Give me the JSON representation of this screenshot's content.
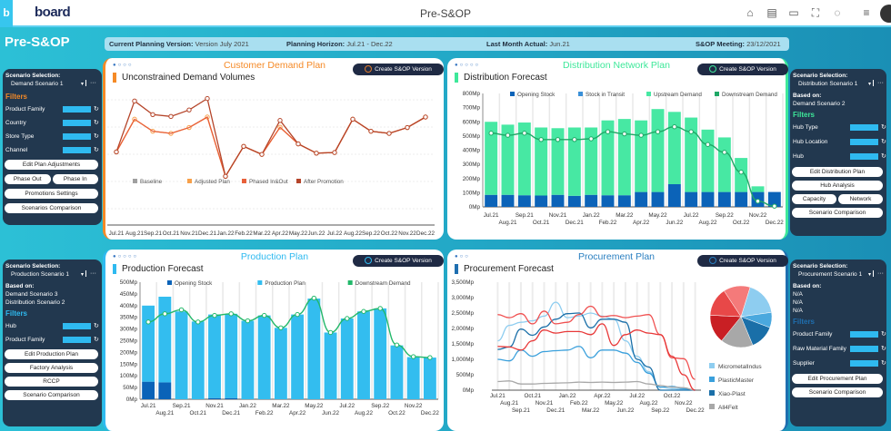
{
  "app": {
    "logo_letter": "b",
    "logo_text": "board",
    "title": "Pre-S&OP",
    "icons": [
      "home-icon",
      "hierarchy-icon",
      "list-icon",
      "network-icon",
      "chat-icon",
      "menu-icon"
    ]
  },
  "page_title": "Pre-S&OP",
  "info": {
    "cpv_label": "Current Planning Version:",
    "cpv_value": "Version July 2021",
    "ph_label": "Planning Horizon:",
    "ph_value": "Jul.21 - Dec.22",
    "lma_label": "Last Month Actual:",
    "lma_value": "Jun.21",
    "mtg_label": "S&OP Meeting:",
    "mtg_value": "23/12/2021"
  },
  "common": {
    "create_label": "Create S&OP Version",
    "scenario_label": "Scenario Selection:",
    "based_on_label": "Based on:",
    "filters_label": "Filters",
    "refresh": "↻",
    "caret": "▾",
    "more": "···"
  },
  "months": [
    "Jul.21",
    "Aug.21",
    "Sep.21",
    "Oct.21",
    "Nov.21",
    "Dec.21",
    "Jan.22",
    "Feb.22",
    "Mar.22",
    "Apr.22",
    "May.22",
    "Jun.22",
    "Jul.22",
    "Aug.22",
    "Sep.22",
    "Oct.22",
    "Nov.22",
    "Dec.22"
  ],
  "demand": {
    "card_title": "Customer Demand Plan",
    "accent": "#f58a27",
    "subtitle": "Unconstrained Demand Volumes",
    "scenario": "Demand Scenario 1",
    "filters": [
      "Product Family",
      "Country",
      "Store Type",
      "Channel"
    ],
    "buttons": [
      "Edit Plan Adjustments",
      "Phase Out",
      "Phase In",
      "Promotions Settings",
      "Scenarios Comparison"
    ]
  },
  "distribution": {
    "card_title": "Distribution Network Plan",
    "accent": "#3ee89a",
    "subtitle": "Distribution Forecast",
    "scenario": "Distribution Scenario 1",
    "based_on": [
      "Demand Scenario 2"
    ],
    "filters": [
      "Hub Type",
      "Hub Location",
      "Hub"
    ],
    "buttons": [
      "Edit Distribution Plan",
      "Hub Analysis",
      "Capacity",
      "Network",
      "Scenario Comparison"
    ]
  },
  "production": {
    "card_title": "Production Plan",
    "accent": "#2fbaf0",
    "subtitle": "Production Forecast",
    "scenario": "Production Scenario 1",
    "based_on": [
      "Demand Scenario 3",
      "Distribution Scenario 2"
    ],
    "filters": [
      "Hub",
      "Product Family"
    ],
    "buttons": [
      "Edit Production Plan",
      "Factory Analysis",
      "RCCP",
      "Scenario Comparison"
    ]
  },
  "procurement": {
    "card_title": "Procurement Plan",
    "accent": "#2a7fc0",
    "subtitle": "Procurement Forecast",
    "scenario": "Procurement Scenario 1",
    "based_on": [
      "N/A",
      "N/A",
      "N/A"
    ],
    "filters": [
      "Product Family",
      "Raw Material Family",
      "Supplier"
    ],
    "buttons": [
      "Edit Procurement Plan",
      "Scenario Comparison"
    ]
  },
  "chart_data": [
    {
      "type": "line",
      "title": "Unconstrained Demand Volumes",
      "legend": "middle",
      "ylim": [
        0,
        400
      ],
      "series": [
        {
          "name": "Baseline",
          "color": "#a0a0a0",
          "values": null
        },
        {
          "name": "Adjusted Plan",
          "color": "#f7a04a",
          "values": [
            187,
            293,
            254,
            247,
            266,
            300,
            108,
            205,
            179,
            267,
            213,
            183,
            185,
            293,
            254,
            247,
            266,
            300
          ]
        },
        {
          "name": "Phased In&Out",
          "color": "#e8603a",
          "values": [
            187,
            293,
            254,
            247,
            266,
            300,
            108,
            205,
            179,
            267,
            213,
            183,
            185,
            293,
            254,
            247,
            266,
            300
          ]
        },
        {
          "name": "After Promotion",
          "color": "#b5452a",
          "values": [
            187,
            352,
            308,
            302,
            323,
            360,
            108,
            205,
            179,
            289,
            213,
            183,
            185,
            293,
            254,
            247,
            266,
            300
          ]
        }
      ]
    },
    {
      "type": "bar",
      "stacked": true,
      "title": "Distribution Forecast",
      "ylim": [
        0,
        800
      ],
      "yticks": [
        "0Mp",
        "100Mp",
        "200Mp",
        "300Mp",
        "400Mp",
        "500Mp",
        "600Mp",
        "700Mp",
        "800Mp"
      ],
      "legend": "top",
      "series": [
        {
          "name": "Opening Stock",
          "color": "#0b63b8",
          "values": [
            85,
            85,
            82,
            80,
            85,
            78,
            85,
            82,
            82,
            105,
            105,
            160,
            105,
            105,
            105,
            105,
            105,
            105
          ]
        },
        {
          "name": "Stock in Transit",
          "color": "#3a90d8",
          "values": [
            0,
            0,
            0,
            0,
            0,
            0,
            0,
            0,
            0,
            0,
            0,
            0,
            0,
            0,
            0,
            0,
            0,
            0
          ]
        },
        {
          "name": "Upstream Demand",
          "color": "#47e8a3",
          "values": [
            515,
            495,
            513,
            480,
            470,
            482,
            475,
            528,
            538,
            505,
            585,
            510,
            525,
            440,
            385,
            240,
            40,
            0
          ]
        },
        {
          "name": "Downstream Demand",
          "color": "#1fa866",
          "type": "line",
          "values": [
            520,
            505,
            520,
            475,
            475,
            475,
            480,
            530,
            515,
            505,
            530,
            565,
            530,
            440,
            385,
            245,
            40,
            5
          ]
        }
      ]
    },
    {
      "type": "bar",
      "stacked": true,
      "title": "Production Forecast",
      "ylim": [
        0,
        500
      ],
      "yticks": [
        "0Mp",
        "50Mp",
        "100Mp",
        "150Mp",
        "200Mp",
        "250Mp",
        "300Mp",
        "350Mp",
        "400Mp",
        "450Mp",
        "500Mp"
      ],
      "legend": "top",
      "series": [
        {
          "name": "Opening Stock",
          "color": "#0b63b8",
          "values": [
            75,
            72,
            0,
            0,
            5,
            5,
            0,
            0,
            0,
            0,
            0,
            0,
            0,
            0,
            0,
            0,
            0,
            0
          ]
        },
        {
          "name": "Production Plan",
          "color": "#33bdef",
          "values": [
            325,
            366,
            375,
            332,
            357,
            360,
            335,
            358,
            305,
            362,
            430,
            285,
            345,
            375,
            388,
            230,
            180,
            178
          ]
        },
        {
          "name": "Downstream Demand",
          "color": "#22b86a",
          "type": "line",
          "values": [
            330,
            365,
            382,
            330,
            358,
            365,
            335,
            358,
            305,
            362,
            432,
            285,
            345,
            375,
            388,
            232,
            182,
            178
          ]
        }
      ]
    },
    {
      "type": "line",
      "title": "Procurement Forecast",
      "ylim": [
        0,
        3500
      ],
      "yticks": [
        "0Mp",
        "500Mp",
        "1,000Mp",
        "1,500Mp",
        "2,000Mp",
        "2,500Mp",
        "3,000Mp",
        "3,500Mp"
      ],
      "legend": "right",
      "series": [
        {
          "name": "MicrometalIndus",
          "color": "#8ecdf0",
          "values": [
            1600,
            2100,
            2200,
            2250,
            2400,
            2850,
            2350,
            2400,
            2500,
            2400,
            2300,
            1600,
            1100,
            600,
            100,
            50,
            20,
            0
          ]
        },
        {
          "name": "PlasticMaster",
          "color": "#3aa0dc",
          "values": [
            1000,
            950,
            1300,
            1100,
            1250,
            1280,
            1300,
            1420,
            1050,
            1300,
            1300,
            1200,
            900,
            550,
            100,
            120,
            50,
            0
          ]
        },
        {
          "name": "Xiao-Plast",
          "color": "#1a6fa8",
          "values": [
            1320,
            1400,
            1980,
            1780,
            2050,
            2300,
            2480,
            2500,
            2020,
            2300,
            2300,
            2200,
            1000,
            750,
            0,
            0,
            0,
            0
          ]
        },
        {
          "name": "All4Felt",
          "color": "#a8a8a8",
          "values": [
            280,
            300,
            200,
            200,
            220,
            230,
            240,
            260,
            250,
            260,
            250,
            260,
            280,
            200,
            150,
            100,
            80,
            0
          ]
        },
        {
          "name": null,
          "color": "#f05050",
          "values": [
            2450,
            2350,
            2480,
            2150,
            2560,
            2150,
            2200,
            2450,
            2720,
            2380,
            2420,
            2350,
            2400,
            2450,
            1800,
            1050,
            1020,
            350
          ]
        },
        {
          "name": null,
          "color": "#e83838",
          "values": [
            1420,
            1400,
            1300,
            1600,
            1950,
            1850,
            1900,
            1900,
            1800,
            2150,
            1450,
            1800,
            1950,
            1850,
            1800,
            1100,
            500,
            0
          ]
        }
      ],
      "pie": [
        {
          "name": "MicrometalIndus",
          "color": "#8ecdf0",
          "share": 18
        },
        {
          "name": "PlasticMaster",
          "color": "#4aa8de",
          "share": 8
        },
        {
          "name": "Xiao-Plast",
          "color": "#1a6fa8",
          "share": 13
        },
        {
          "name": "All4Felt",
          "color": "#a8a8a8",
          "share": 17
        },
        {
          "name": null,
          "color": "#c91f24",
          "share": 15
        },
        {
          "name": null,
          "color": "#e84848",
          "share": 15
        },
        {
          "name": null,
          "color": "#f47a7a",
          "share": 14
        }
      ]
    }
  ]
}
